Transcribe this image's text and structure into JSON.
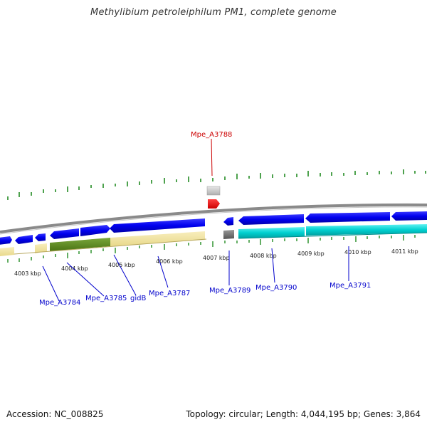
{
  "title": "Methylibium petroleiphilum PM1, complete genome",
  "footer": {
    "accession": "Accession: NC_008825",
    "summary": "Topology: circular; Length: 4,044,195 bp; Genes: 3,864"
  },
  "colors": {
    "backbone": "#8a8a8a",
    "forward_gene": "#0000ee",
    "reverse_gene": "#0000ee",
    "rna_gene": "#00d5d5",
    "highlight": "#ee0000",
    "feature_yellow": "#f3e6a3",
    "feature_green": "#5a8a1e",
    "feature_gray": "#666666",
    "label_blue": "#0000cc",
    "label_red": "#cc0000",
    "tick_green": "#228b22"
  },
  "scale_labels": [
    {
      "text": "4003 kbp",
      "kbp": 4003
    },
    {
      "text": "4004 kbp",
      "kbp": 4004
    },
    {
      "text": "4005 kbp",
      "kbp": 4005
    },
    {
      "text": "4006 kbp",
      "kbp": 4006
    },
    {
      "text": "4007 kbp",
      "kbp": 4007
    },
    {
      "text": "4008 kbp",
      "kbp": 4008
    },
    {
      "text": "4009 kbp",
      "kbp": 4009
    },
    {
      "text": "4010 kbp",
      "kbp": 4010
    },
    {
      "text": "4011 kbp",
      "kbp": 4011
    }
  ],
  "gene_labels": [
    {
      "text": "Mpe_A3788",
      "highlighted": true
    },
    {
      "text": "Mpe_A3784",
      "highlighted": false
    },
    {
      "text": "Mpe_A3785",
      "highlighted": false
    },
    {
      "text": "gidB",
      "highlighted": false
    },
    {
      "text": "Mpe_A3787",
      "highlighted": false
    },
    {
      "text": "Mpe_A3789",
      "highlighted": false
    },
    {
      "text": "Mpe_A3790",
      "highlighted": false
    },
    {
      "text": "Mpe_A3791",
      "highlighted": false
    }
  ]
}
